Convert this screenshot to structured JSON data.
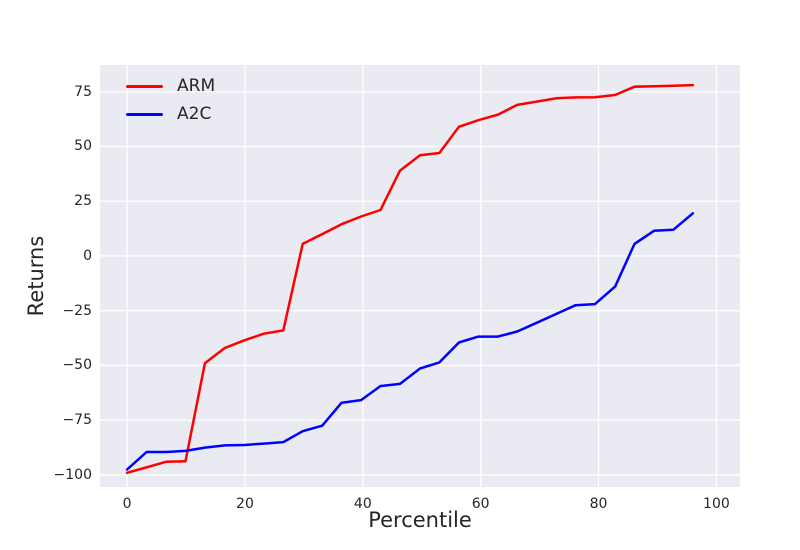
{
  "chart_data": {
    "type": "line",
    "title": "",
    "xlabel": "Percentile",
    "ylabel": "Returns",
    "xlim": [
      -4.6,
      104.0
    ],
    "ylim": [
      -105.5,
      87.2
    ],
    "x_ticks": [
      0,
      20,
      40,
      60,
      80,
      100
    ],
    "y_ticks": [
      75,
      50,
      25,
      0,
      -25,
      -50,
      -75,
      -100
    ],
    "grid": true,
    "legend_position": "upper left",
    "x": [
      0,
      3.3,
      6.6,
      9.9,
      13.2,
      16.6,
      19.9,
      23.2,
      26.5,
      29.8,
      33.1,
      36.4,
      39.7,
      43,
      46.3,
      49.7,
      53,
      56.3,
      59.6,
      62.9,
      66.2,
      69.5,
      72.8,
      76.1,
      79.4,
      82.8,
      86.1,
      89.4,
      92.7,
      96
    ],
    "series": [
      {
        "name": "ARM",
        "color": "#ff0000",
        "values": [
          -99,
          -96.5,
          -94,
          -93.7,
          -49,
          -42,
          -38.5,
          -35.5,
          -34,
          5.5,
          10,
          14.5,
          18,
          21,
          39,
          46,
          47,
          59,
          62,
          64.5,
          69,
          70.5,
          72,
          72.4,
          72.5,
          73.5,
          77.3,
          77.5,
          77.7,
          78
        ]
      },
      {
        "name": "A2C",
        "color": "#0000ff",
        "values": [
          -97.5,
          -89.5,
          -89.5,
          -89,
          -87.5,
          -86.5,
          -86.3,
          -85.7,
          -85,
          -80,
          -77.5,
          -67,
          -65.8,
          -59.4,
          -58.4,
          -51.4,
          -48.6,
          -39.5,
          -36.8,
          -36.8,
          -34.5,
          -30.5,
          -26.5,
          -22.5,
          -22,
          -14,
          5.5,
          11.5,
          12,
          19.5
        ]
      }
    ]
  },
  "colors": {
    "plot_background": "#eaeaf2",
    "gridline": "#ffffff",
    "text": "#262626",
    "arm_line": "#ff0000",
    "a2c_line": "#0000ff"
  }
}
